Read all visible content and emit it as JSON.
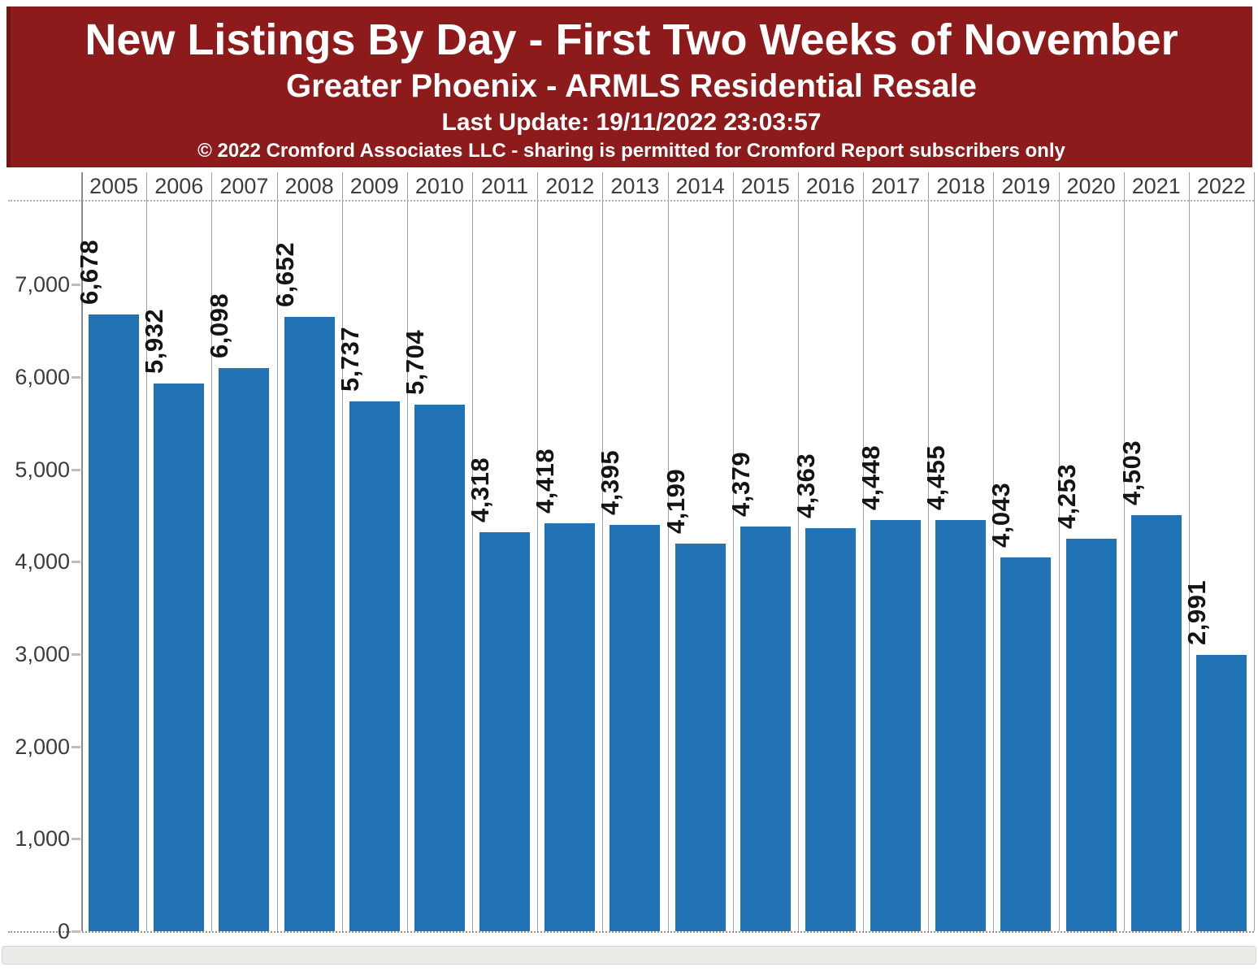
{
  "header": {
    "title": "New Listings By Day - First Two Weeks of November",
    "subtitle": "Greater Phoenix - ARMLS Residential Resale",
    "last_update": "Last Update: 19/11/2022 23:03:57",
    "copyright": "© 2022 Cromford Associates LLC - sharing is permitted for Cromford Report subscribers only",
    "background_color": "#8d1b1b",
    "border_color": "#701414",
    "text_color": "#ffffff"
  },
  "chart_data": {
    "type": "bar",
    "title": "New Listings By Day - First Two Weeks of November",
    "subtitle": "Greater Phoenix - ARMLS Residential Resale",
    "annotations": [
      "Last Update: 19/11/2022 23:03:57",
      "© 2022 Cromford Associates LLC - sharing is permitted for Cromford Report subscribers only"
    ],
    "categories": [
      "2005",
      "2006",
      "2007",
      "2008",
      "2009",
      "2010",
      "2011",
      "2012",
      "2013",
      "2014",
      "2015",
      "2016",
      "2017",
      "2018",
      "2019",
      "2020",
      "2021",
      "2022"
    ],
    "values": [
      6678,
      5932,
      6098,
      6652,
      5737,
      5704,
      4318,
      4418,
      4395,
      4199,
      4379,
      4363,
      4448,
      4455,
      4043,
      4253,
      4503,
      2991
    ],
    "value_labels": [
      "6,678",
      "5,932",
      "6,098",
      "6,652",
      "5,737",
      "5,704",
      "4,318",
      "4,418",
      "4,395",
      "4,199",
      "4,379",
      "4,363",
      "4,448",
      "4,455",
      "4,043",
      "4,253",
      "4,503",
      "2,991"
    ],
    "value_label_rotation": -90,
    "xlabel": "",
    "ylabel": "",
    "ylim": [
      0,
      7900
    ],
    "ytick_values": [
      0,
      1000,
      2000,
      3000,
      4000,
      5000,
      6000,
      7000
    ],
    "ytick_labels": [
      "0",
      "1,000",
      "2,000",
      "3,000",
      "4,000",
      "5,000",
      "6,000",
      "7,000"
    ],
    "bar_color": "#2273b5",
    "grid": "vertical column separators between year lanes, x-axis on top as year header row",
    "legend": "none"
  }
}
